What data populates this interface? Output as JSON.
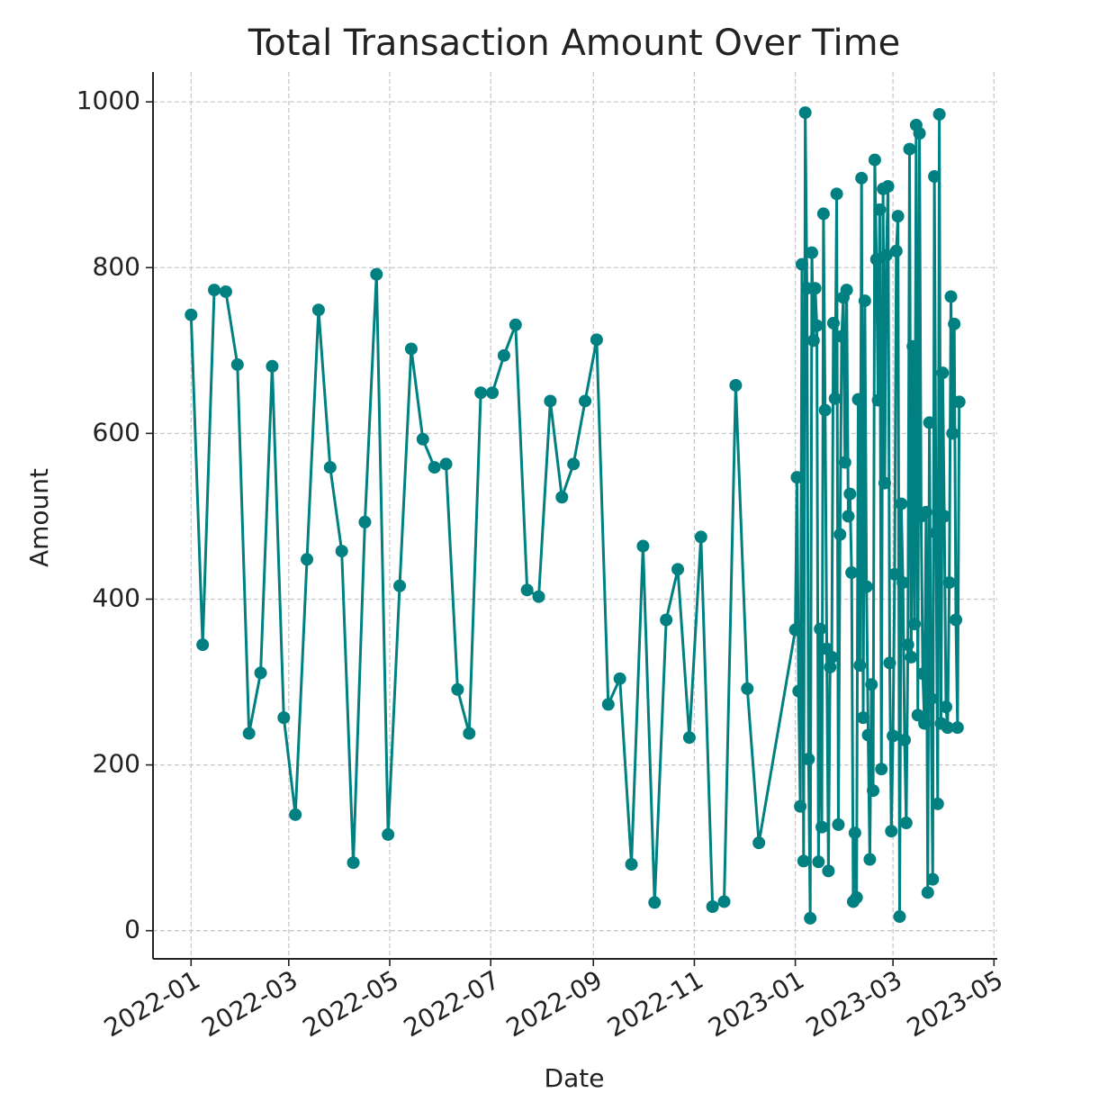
{
  "chart_data": {
    "type": "line",
    "title": "Total Transaction Amount Over Time",
    "xlabel": "Date",
    "ylabel": "Amount",
    "x": [
      "2022-01-01",
      "2022-01-08",
      "2022-01-15",
      "2022-01-22",
      "2022-01-29",
      "2022-02-05",
      "2022-02-12",
      "2022-02-19",
      "2022-02-26",
      "2022-03-05",
      "2022-03-12",
      "2022-03-19",
      "2022-03-26",
      "2022-04-02",
      "2022-04-09",
      "2022-04-16",
      "2022-04-23",
      "2022-04-30",
      "2022-05-07",
      "2022-05-14",
      "2022-05-21",
      "2022-05-28",
      "2022-06-04",
      "2022-06-11",
      "2022-06-18",
      "2022-06-25",
      "2022-07-02",
      "2022-07-09",
      "2022-07-16",
      "2022-07-23",
      "2022-07-30",
      "2022-08-06",
      "2022-08-13",
      "2022-08-20",
      "2022-08-27",
      "2022-09-03",
      "2022-09-10",
      "2022-09-17",
      "2022-09-24",
      "2022-10-01",
      "2022-10-08",
      "2022-10-15",
      "2022-10-22",
      "2022-10-29",
      "2022-11-05",
      "2022-11-12",
      "2022-11-19",
      "2022-11-26",
      "2022-12-03",
      "2022-12-10",
      "2023-01-01",
      "2023-01-02",
      "2023-01-03",
      "2023-01-04",
      "2023-01-05",
      "2023-01-06",
      "2023-01-07",
      "2023-01-08",
      "2023-01-09",
      "2023-01-10",
      "2023-01-11",
      "2023-01-12",
      "2023-01-13",
      "2023-01-14",
      "2023-01-15",
      "2023-01-16",
      "2023-01-17",
      "2023-01-18",
      "2023-01-19",
      "2023-01-20",
      "2023-01-21",
      "2023-01-22",
      "2023-01-23",
      "2023-01-24",
      "2023-01-25",
      "2023-01-26",
      "2023-01-27",
      "2023-01-28",
      "2023-01-29",
      "2023-01-30",
      "2023-01-31",
      "2023-02-01",
      "2023-02-02",
      "2023-02-03",
      "2023-02-04",
      "2023-02-05",
      "2023-02-06",
      "2023-02-07",
      "2023-02-08",
      "2023-02-09",
      "2023-02-10",
      "2023-02-11",
      "2023-02-12",
      "2023-02-13",
      "2023-02-14",
      "2023-02-15",
      "2023-02-16",
      "2023-02-17",
      "2023-02-18",
      "2023-02-19",
      "2023-02-20",
      "2023-02-21",
      "2023-02-22",
      "2023-02-23",
      "2023-02-24",
      "2023-02-25",
      "2023-02-26",
      "2023-02-27",
      "2023-02-28",
      "2023-03-01",
      "2023-03-02",
      "2023-03-03",
      "2023-03-04",
      "2023-03-05",
      "2023-03-06",
      "2023-03-07",
      "2023-03-08",
      "2023-03-09",
      "2023-03-10",
      "2023-03-11",
      "2023-03-12",
      "2023-03-13",
      "2023-03-14",
      "2023-03-15",
      "2023-03-16",
      "2023-03-17",
      "2023-03-18",
      "2023-03-19",
      "2023-03-20",
      "2023-03-21",
      "2023-03-22",
      "2023-03-23",
      "2023-03-24",
      "2023-03-25",
      "2023-03-26",
      "2023-03-27",
      "2023-03-28",
      "2023-03-29",
      "2023-03-30",
      "2023-03-31",
      "2023-04-01",
      "2023-04-02",
      "2023-04-03",
      "2023-04-04",
      "2023-04-05",
      "2023-04-06",
      "2023-04-07",
      "2023-04-08",
      "2023-04-09",
      "2023-04-10"
    ],
    "series": [
      {
        "name": "Amount",
        "color": "#008080",
        "values": [
          743,
          345,
          773,
          771,
          683,
          238,
          311,
          681,
          257,
          140,
          448,
          749,
          559,
          458,
          82,
          493,
          792,
          116,
          416,
          702,
          593,
          559,
          563,
          291,
          238,
          649,
          649,
          694,
          731,
          411,
          403,
          639,
          523,
          563,
          639,
          713,
          273,
          304,
          80,
          464,
          34,
          375,
          436,
          233,
          475,
          29,
          35,
          658,
          292,
          106,
          363,
          547,
          289,
          150,
          804,
          84,
          987,
          775,
          207,
          15,
          818,
          712,
          775,
          730,
          83,
          364,
          125,
          865,
          628,
          340,
          72,
          318,
          330,
          733,
          642,
          889,
          128,
          478,
          717,
          764,
          565,
          773,
          500,
          527,
          432,
          35,
          118,
          40,
          641,
          320,
          908,
          257,
          760,
          415,
          236,
          86,
          297,
          169,
          930,
          810,
          640,
          870,
          195,
          895,
          540,
          815,
          898,
          323,
          120,
          235,
          430,
          820,
          862,
          17,
          515,
          420,
          230,
          130,
          345,
          943,
          330,
          705,
          370,
          972,
          260,
          962,
          500,
          310,
          250,
          505,
          46,
          613,
          280,
          62,
          910,
          480,
          153,
          985,
          250,
          673,
          500,
          270,
          245,
          420,
          765,
          600,
          732,
          375,
          245,
          638
        ]
      }
    ],
    "xlim": [
      "2021-12-09",
      "2023-05-03"
    ],
    "xticks": [
      {
        "value": "2022-01-01",
        "label": "2022-01"
      },
      {
        "value": "2022-03-01",
        "label": "2022-03"
      },
      {
        "value": "2022-05-01",
        "label": "2022-05"
      },
      {
        "value": "2022-07-01",
        "label": "2022-07"
      },
      {
        "value": "2022-09-01",
        "label": "2022-09"
      },
      {
        "value": "2022-11-01",
        "label": "2022-11"
      },
      {
        "value": "2023-01-01",
        "label": "2023-01"
      },
      {
        "value": "2023-03-01",
        "label": "2023-03"
      },
      {
        "value": "2023-05-01",
        "label": "2023-05"
      }
    ],
    "ylim": [
      -34,
      1036
    ],
    "yticks": [
      0,
      200,
      400,
      600,
      800,
      1000
    ],
    "grid": true
  }
}
